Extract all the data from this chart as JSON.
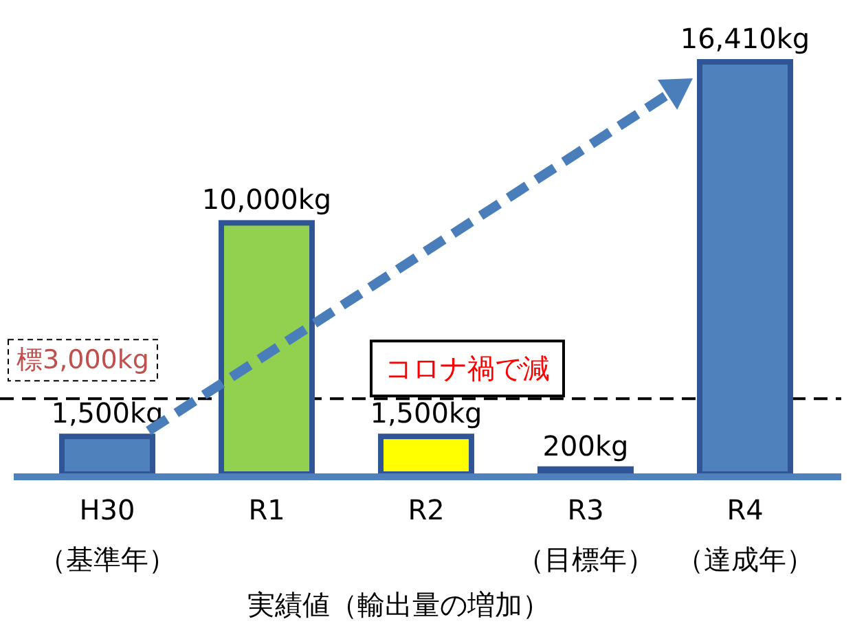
{
  "chart_data": {
    "type": "bar",
    "categories": [
      "H30",
      "R1",
      "R2",
      "R3",
      "R4"
    ],
    "values": [
      1500,
      10000,
      1500,
      200,
      16410
    ],
    "value_labels": [
      "1,500kg",
      "10,000kg",
      "1,500kg",
      "200kg",
      "16,410kg"
    ],
    "colors": [
      "#4f81bd",
      "#92d050",
      "#ffff00",
      "#e36c09",
      "#4f81bd"
    ],
    "xlabel": "実績値（輸出量の増加）",
    "ref_lines": [
      {
        "axis": "y",
        "value": 3000,
        "label": "標3,000kg",
        "line_style": "dashed",
        "color": "#000000"
      }
    ],
    "annotations": [
      "（基準年）",
      "（目標年）",
      "（達成年）",
      "コロナ禍で減"
    ]
  }
}
